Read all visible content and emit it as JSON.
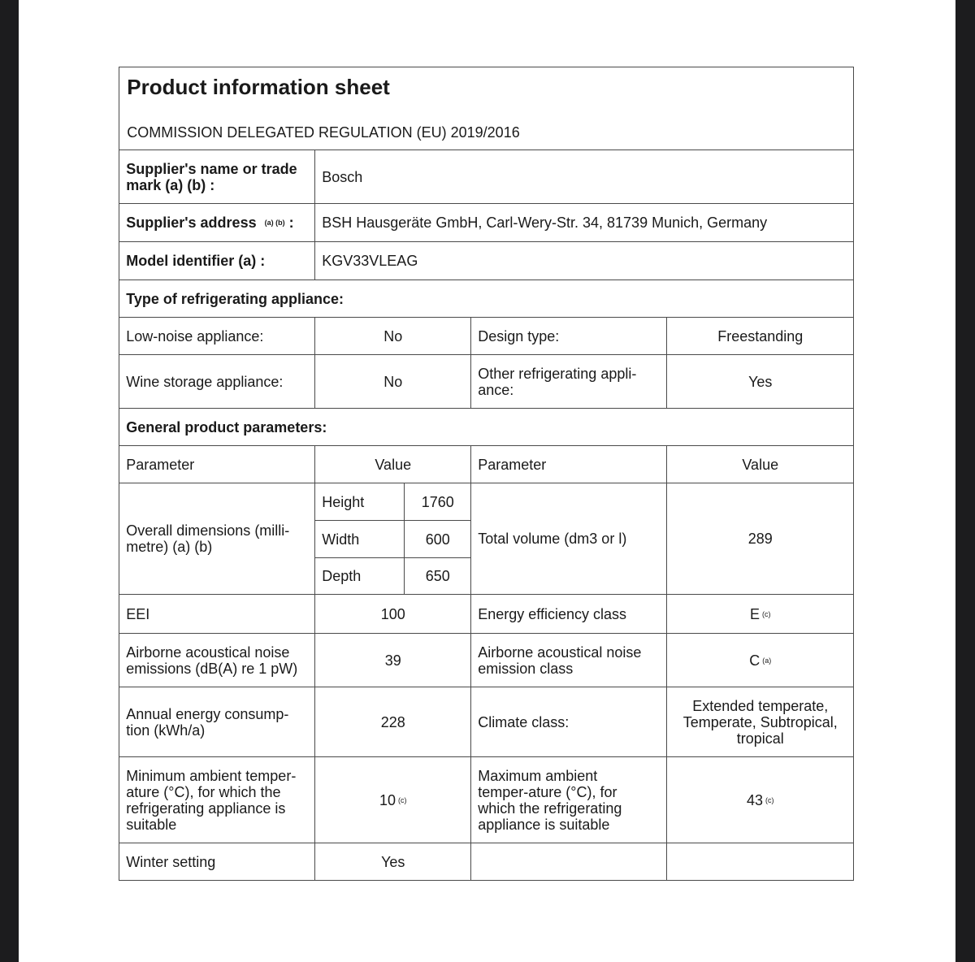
{
  "title": "Product information sheet",
  "regulation": "COMMISSION DELEGATED REGULATION (EU) 2019/2016",
  "supplier_name_label": "Supplier's name or trade mark (a) (b) :",
  "supplier_name": "Bosch",
  "supplier_address_label": "Supplier's address",
  "supplier_address_sup": "(a) (b)",
  "supplier_address_colon": ":",
  "supplier_address": "BSH Hausgeräte GmbH, Carl-Wery-Str. 34, 81739 Munich, Germany",
  "model_label": "Model identifier (a) :",
  "model": "KGV33VLEAG",
  "type_heading": "Type of refrigerating appliance:",
  "low_noise_label": "Low-noise appliance:",
  "low_noise": "No",
  "design_type_label": "Design type:",
  "design_type": "Freestanding",
  "wine_label": "Wine storage appliance:",
  "wine": "No",
  "other_label": "Other refrigerating appli-ance:",
  "other": "Yes",
  "general_heading": "General product parameters:",
  "col_parameter": "Parameter",
  "col_value": "Value",
  "dimensions_label": "Overall dimensions (milli-metre) (a) (b)",
  "height_label": "Height",
  "height": "1760",
  "width_label": "Width",
  "width": "600",
  "depth_label": "Depth",
  "depth": "650",
  "volume_label": "Total volume (dm3 or l)",
  "volume": "289",
  "eei_label": "EEI",
  "eei": "100",
  "energy_class_label": "Energy efficiency class",
  "energy_class": "E",
  "energy_class_sup": "(c)",
  "noise_label": "Airborne acoustical noise emissions (dB(A) re 1 pW)",
  "noise": "39",
  "noise_class_label": "Airborne acoustical noise emission class",
  "noise_class": "C",
  "noise_class_sup": "(a)",
  "annual_label": "Annual energy consump-tion (kWh/a)",
  "annual": "228",
  "climate_label": "Climate class:",
  "climate": "Extended temperate, Temperate, Subtropical, tropical",
  "min_temp_label": "Minimum ambient temper-ature (°C), for which the refrigerating appliance is suitable",
  "min_temp": "10",
  "min_temp_sup": "(c)",
  "max_temp_label": "Maximum ambient temper-ature (°C), for which the refrigerating appliance is suitable",
  "max_temp": "43",
  "max_temp_sup": "(c)",
  "winter_label": "Winter setting",
  "winter": "Yes"
}
